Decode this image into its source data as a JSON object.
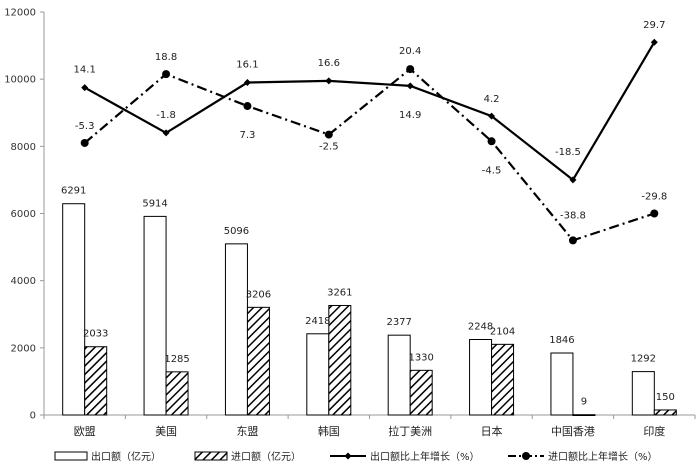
{
  "chart_data": {
    "type": "bar",
    "categories": [
      "欧盟",
      "美国",
      "东盟",
      "韩国",
      "拉丁美洲",
      "日本",
      "中国香港",
      "印度"
    ],
    "ylim": [
      0,
      12000
    ],
    "yticks": [
      "0",
      "2000",
      "4000",
      "6000",
      "8000",
      "10000",
      "12000"
    ],
    "grid": false,
    "legend_position": "bottom",
    "series": [
      {
        "name": "出口额（亿元）",
        "kind": "bar",
        "fill": "white",
        "values": [
          6291,
          5914,
          5096,
          2418,
          2377,
          2248,
          1846,
          1292
        ],
        "labels": [
          "6291",
          "5914",
          "5096",
          "2418",
          "2377",
          "2248",
          "1846",
          "1292"
        ]
      },
      {
        "name": "进口额（亿元）",
        "kind": "bar",
        "fill": "hatch",
        "values": [
          2033,
          1285,
          3206,
          3261,
          1330,
          2104,
          9,
          150
        ],
        "labels": [
          "2033",
          "1285",
          "3206",
          "3261",
          "1330",
          "2104",
          "9",
          "150"
        ]
      },
      {
        "name": "出口额比上年增长（%）",
        "kind": "line",
        "style": "solid",
        "marker": "diamond",
        "growth": [
          14.1,
          -1.8,
          16.1,
          16.6,
          14.9,
          4.2,
          -18.5,
          29.7
        ],
        "labels": [
          "14.1",
          "-1.8",
          "16.1",
          "16.6",
          "14.9",
          "4.2",
          "-18.5",
          "29.7"
        ],
        "plot_y": [
          9750,
          8400,
          9900,
          9950,
          9800,
          8900,
          7000,
          11100
        ]
      },
      {
        "name": "进口额比上年增长（%）",
        "kind": "line",
        "style": "dashdot",
        "marker": "circle",
        "growth": [
          -5.3,
          18.8,
          7.3,
          -2.5,
          20.4,
          -4.5,
          -38.8,
          -29.8
        ],
        "labels": [
          "-5.3",
          "18.8",
          "7.3",
          "-2.5",
          "20.4",
          "-4.5",
          "-38.8",
          "-29.8"
        ],
        "plot_y": [
          8100,
          10150,
          9200,
          8350,
          10300,
          8150,
          5200,
          6000
        ]
      }
    ]
  },
  "colors": {
    "axis": "#999999",
    "text": "#222222",
    "line": "#000000"
  }
}
